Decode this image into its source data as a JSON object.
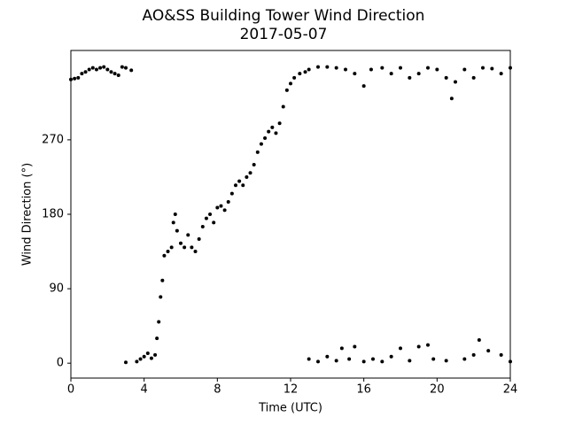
{
  "chart_data": {
    "type": "scatter",
    "title": "AO&SS Building Tower Wind Direction",
    "subtitle": "2017-05-07",
    "x_label": "Time (UTC)",
    "y_label": "Wind Direction (°)",
    "xlim": [
      0,
      24
    ],
    "ylim": [
      -18,
      378
    ],
    "xticks": [
      0,
      4,
      8,
      12,
      16,
      20,
      24
    ],
    "yticks": [
      0,
      90,
      180,
      270
    ],
    "color": "#000000",
    "x": [
      0,
      0.2,
      0.4,
      0.6,
      0.8,
      1.0,
      1.2,
      1.4,
      1.6,
      1.8,
      2.0,
      2.2,
      2.4,
      2.6,
      2.8,
      3.0,
      3.3,
      3.0,
      3.6,
      3.8,
      4.0,
      4.2,
      4.4,
      4.6,
      4.7,
      4.8,
      4.9,
      5.0,
      5.1,
      5.3,
      5.5,
      5.6,
      5.7,
      5.8,
      6.0,
      6.2,
      6.4,
      6.6,
      6.8,
      7.0,
      7.2,
      7.4,
      7.6,
      7.8,
      8.0,
      8.2,
      8.4,
      8.6,
      8.8,
      9.0,
      9.2,
      9.4,
      9.6,
      9.8,
      10.0,
      10.2,
      10.4,
      10.6,
      10.8,
      11.0,
      11.2,
      11.4,
      11.6,
      11.8,
      12.0,
      12.2,
      12.5,
      12.8,
      13.0,
      13.5,
      14.0,
      14.5,
      15.0,
      15.5,
      16.0,
      16.4,
      17.0,
      17.5,
      18.0,
      18.5,
      19.0,
      19.5,
      20.0,
      20.5,
      20.8,
      21.0,
      21.5,
      22.0,
      22.5,
      23.0,
      23.5,
      24.0,
      13.0,
      13.5,
      14.0,
      14.5,
      14.8,
      15.2,
      15.5,
      16.0,
      16.5,
      17.0,
      17.5,
      18.0,
      18.5,
      19.0,
      19.5,
      19.8,
      20.5,
      21.5,
      22.0,
      22.3,
      22.8,
      23.5,
      24.0
    ],
    "values": [
      343,
      344,
      345,
      350,
      352,
      355,
      357,
      355,
      357,
      358,
      355,
      352,
      350,
      348,
      358,
      357,
      354,
      1,
      2,
      5,
      8,
      12,
      6,
      10,
      30,
      50,
      80,
      100,
      130,
      135,
      140,
      170,
      180,
      160,
      145,
      140,
      155,
      140,
      135,
      150,
      165,
      175,
      180,
      170,
      188,
      190,
      185,
      195,
      205,
      215,
      220,
      215,
      225,
      230,
      240,
      255,
      265,
      272,
      280,
      285,
      278,
      290,
      310,
      330,
      338,
      345,
      350,
      352,
      355,
      358,
      358,
      357,
      355,
      350,
      335,
      355,
      357,
      350,
      357,
      345,
      350,
      357,
      355,
      345,
      320,
      340,
      355,
      345,
      357,
      356,
      350,
      357,
      5,
      2,
      8,
      3,
      18,
      5,
      20,
      2,
      5,
      2,
      8,
      18,
      3,
      20,
      22,
      5,
      3,
      5,
      10,
      28,
      15,
      10,
      2
    ]
  }
}
